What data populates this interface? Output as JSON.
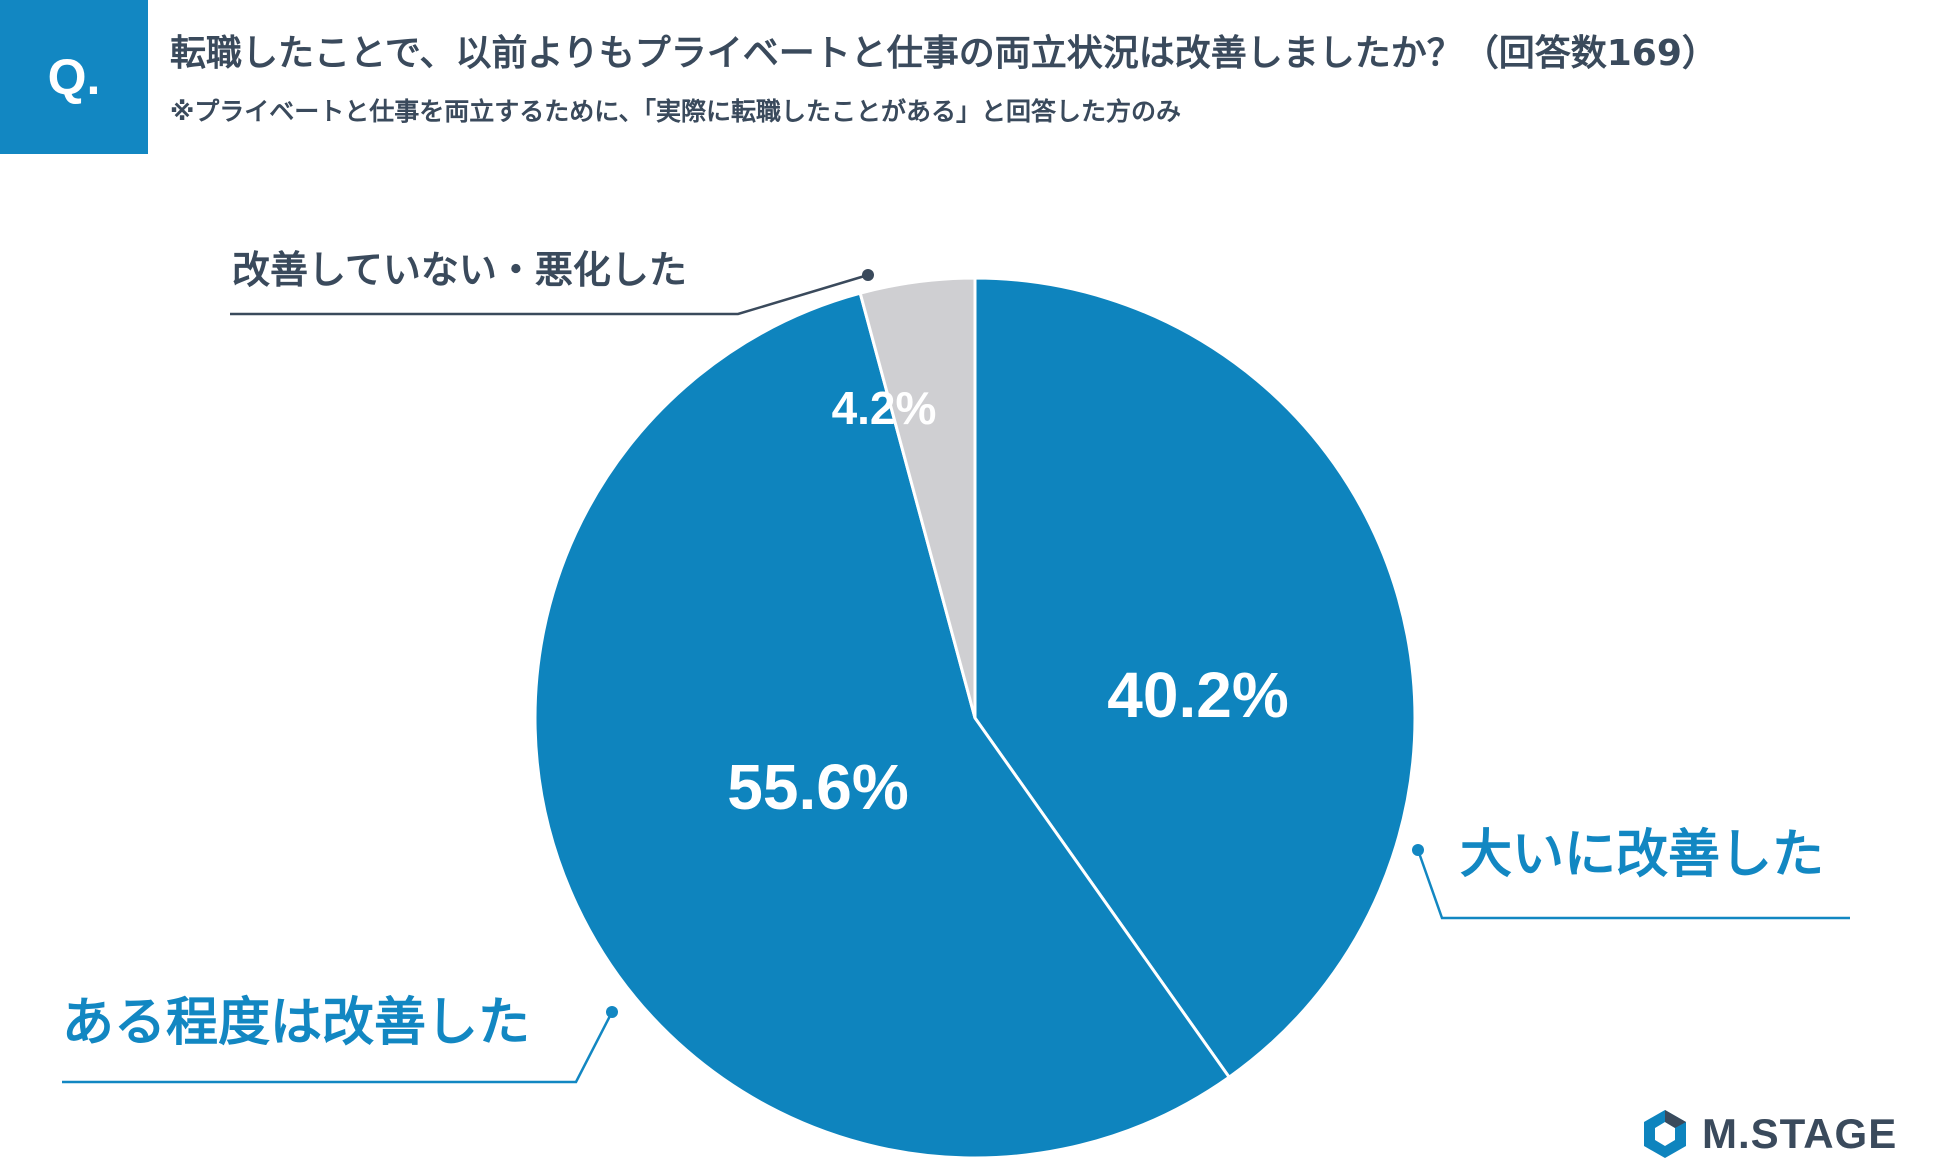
{
  "header": {
    "badge": "Q.",
    "title": "転職したことで、以前よりもプライベートと仕事の両立状況は改善しましたか？（回答数169）",
    "subtitle": "※プライベートと仕事を両立するために、「実際に転職したことがある」と回答した方のみ"
  },
  "chart_data": {
    "type": "pie",
    "start": "12 o'clock, clockwise",
    "slices": [
      {
        "label": "大いに改善した",
        "value": 40.2,
        "value_label": "40.2%",
        "color": "#0e84be",
        "label_color": "#1287c2"
      },
      {
        "label": "ある程度は改善した",
        "value": 55.6,
        "value_label": "55.6%",
        "color": "#0e84be",
        "label_color": "#1287c2"
      },
      {
        "label": "改善していない・悪化した",
        "value": 4.2,
        "value_label": "4.2%",
        "color": "#cfcfd2",
        "label_color": "#3a4a5c"
      }
    ]
  },
  "brand": {
    "logo_text": "M.STAGE",
    "logo_icon": "hexagon-logo-icon"
  }
}
